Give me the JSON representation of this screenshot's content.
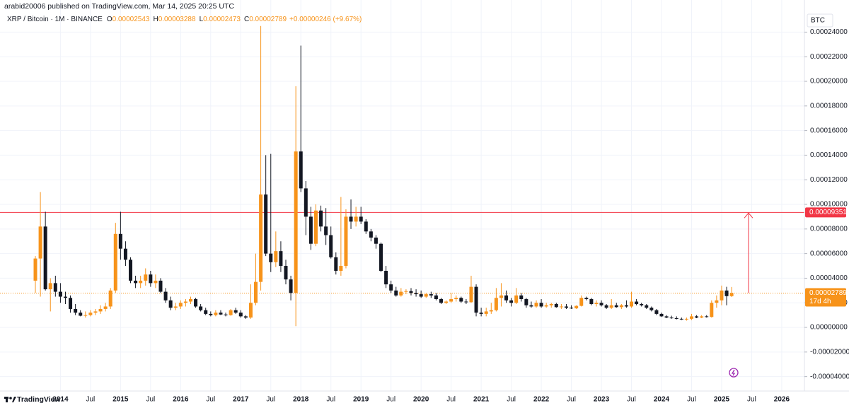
{
  "header": {
    "published": "arabid20006 published on TradingView.com, Mar 14, 2025 20:25 UTC"
  },
  "chart_data": {
    "type": "candlestick",
    "symbol": "XRP / Bitcoin · 1M · BINANCE",
    "ohlc_legend": [
      {
        "key": "O",
        "value": "0.00002543"
      },
      {
        "key": "H",
        "value": "0.00003288"
      },
      {
        "key": "L",
        "value": "0.00002473"
      },
      {
        "key": "C",
        "value": "0.00002789"
      }
    ],
    "change": "+0.00000246 (+9.67%)",
    "currency": "BTC",
    "x": [
      "2013-08",
      "2013-09",
      "2013-10",
      "2013-11",
      "2013-12",
      "2014-01",
      "2014-02",
      "2014-03",
      "2014-04",
      "2014-05",
      "2014-06",
      "2014-07",
      "2014-08",
      "2014-09",
      "2014-10",
      "2014-11",
      "2014-12",
      "2015-01",
      "2015-02",
      "2015-03",
      "2015-04",
      "2015-05",
      "2015-06",
      "2015-07",
      "2015-08",
      "2015-09",
      "2015-10",
      "2015-11",
      "2015-12",
      "2016-01",
      "2016-02",
      "2016-03",
      "2016-04",
      "2016-05",
      "2016-06",
      "2016-07",
      "2016-08",
      "2016-09",
      "2016-10",
      "2016-11",
      "2016-12",
      "2017-01",
      "2017-02",
      "2017-03",
      "2017-04",
      "2017-05",
      "2017-06",
      "2017-07",
      "2017-08",
      "2017-09",
      "2017-10",
      "2017-11",
      "2017-12",
      "2018-01",
      "2018-02",
      "2018-03",
      "2018-04",
      "2018-05",
      "2018-06",
      "2018-07",
      "2018-08",
      "2018-09",
      "2018-10",
      "2018-11",
      "2018-12",
      "2019-01",
      "2019-02",
      "2019-03",
      "2019-04",
      "2019-05",
      "2019-06",
      "2019-07",
      "2019-08",
      "2019-09",
      "2019-10",
      "2019-11",
      "2019-12",
      "2020-01",
      "2020-02",
      "2020-03",
      "2020-04",
      "2020-05",
      "2020-06",
      "2020-07",
      "2020-08",
      "2020-09",
      "2020-10",
      "2020-11",
      "2020-12",
      "2021-01",
      "2021-02",
      "2021-03",
      "2021-04",
      "2021-05",
      "2021-06",
      "2021-07",
      "2021-08",
      "2021-09",
      "2021-10",
      "2021-11",
      "2021-12",
      "2022-01",
      "2022-02",
      "2022-03",
      "2022-04",
      "2022-05",
      "2022-06",
      "2022-07",
      "2022-08",
      "2022-09",
      "2022-10",
      "2022-11",
      "2022-12",
      "2023-01",
      "2023-02",
      "2023-03",
      "2023-04",
      "2023-05",
      "2023-06",
      "2023-07",
      "2023-08",
      "2023-09",
      "2023-10",
      "2023-11",
      "2023-12",
      "2024-01",
      "2024-02",
      "2024-03",
      "2024-04",
      "2024-05",
      "2024-06",
      "2024-07",
      "2024-08",
      "2024-09",
      "2024-10",
      "2024-11",
      "2024-12",
      "2025-01",
      "2025-02",
      "2025-03"
    ],
    "open": [
      3.8e-05,
      5.6e-05,
      8.2e-05,
      3.1e-05,
      3.6e-05,
      2.9e-05,
      2.5e-05,
      2.4e-05,
      1.5e-05,
      1.2e-05,
      9.5e-06,
      1e-05,
      1.2e-05,
      1.3e-05,
      1.5e-05,
      1.7e-05,
      3e-05,
      7.6e-05,
      6.4e-05,
      5.5e-05,
      3.8e-05,
      3.6e-05,
      3.8e-05,
      4.3e-05,
      3.6e-05,
      3.8e-05,
      2.9e-05,
      2.2e-05,
      1.6e-05,
      1.7e-05,
      2e-05,
      2.1e-05,
      2.3e-05,
      1.7e-05,
      1.4e-05,
      1.1e-05,
      1e-05,
      1.2e-05,
      1.05e-05,
      1e-05,
      1.4e-05,
      1.2e-05,
      9e-06,
      8e-06,
      2e-05,
      3.7e-05,
      0.000108,
      6e-05,
      5.3e-05,
      6.2e-05,
      5e-05,
      3.9e-05,
      2.8e-05,
      0.000143,
      0.000113,
      9e-05,
      6.8e-05,
      9.5e-05,
      8.2e-05,
      7.5e-05,
      5.7e-05,
      4.6e-05,
      5e-05,
      9e-05,
      8.6e-05,
      9e-05,
      8.6e-05,
      7.8e-05,
      7.3e-05,
      6.8e-05,
      4.6e-05,
      3.5e-05,
      3e-05,
      2.6e-05,
      2.9e-05,
      2.95e-05,
      2.8e-05,
      2.7e-05,
      2.5e-05,
      2.7e-05,
      2.6e-05,
      2.3e-05,
      2e-05,
      2.1e-05,
      2.3e-05,
      2.4e-05,
      2.1e-05,
      2.05e-05,
      3.3e-05,
      1.2e-05,
      1.1e-05,
      1.3e-05,
      1.4e-05,
      2.4e-05,
      2.6e-05,
      2.2e-05,
      2e-05,
      2.6e-05,
      2.3e-05,
      1.8e-05,
      1.7e-05,
      2e-05,
      1.7e-05,
      1.8e-05,
      1.9e-05,
      1.65e-05,
      1.7e-05,
      1.6e-05,
      1.55e-05,
      1.75e-05,
      2.4e-05,
      2.3e-05,
      1.9e-05,
      2e-05,
      1.8e-05,
      1.6e-05,
      1.8e-05,
      1.65e-05,
      1.8e-05,
      1.7e-05,
      2.1e-05,
      1.9e-05,
      1.8e-05,
      1.6e-05,
      1.4e-05,
      1.1e-05,
      9e-06,
      8e-06,
      7.5e-06,
      7e-06,
      6.5e-06,
      7e-06,
      9e-06,
      8e-06,
      9e-06,
      8.5e-06,
      2e-05,
      2.2e-05,
      3e-05,
      2.543e-05
    ],
    "high": [
      5.8e-05,
      0.00011,
      9.4e-05,
      4e-05,
      4.2e-05,
      3.6e-05,
      2.9e-05,
      2.6e-05,
      1.9e-05,
      1.4e-05,
      1.3e-05,
      1.4e-05,
      1.5e-05,
      1.8e-05,
      2e-05,
      3.2e-05,
      8.5e-05,
      9.4e-05,
      7e-05,
      5.7e-05,
      4.2e-05,
      4.2e-05,
      4.8e-05,
      4.6e-05,
      4.3e-05,
      4e-05,
      3.2e-05,
      2.5e-05,
      2e-05,
      2.2e-05,
      2.3e-05,
      2.5e-05,
      2.4e-05,
      1.9e-05,
      1.6e-05,
      1.3e-05,
      1.4e-05,
      1.4e-05,
      1.2e-05,
      1.5e-05,
      1.6e-05,
      1.4e-05,
      1e-05,
      3.5e-05,
      6e-05,
      0.000245,
      0.00014,
      0.000141,
      7.8e-05,
      7e-05,
      5.5e-05,
      4.2e-05,
      0.000196,
      0.000229,
      0.000119,
      9.8e-05,
      0.0001,
      9.9e-05,
      9.7e-05,
      8.2e-05,
      6.1e-05,
      0.000106,
      9.6e-05,
      0.000104,
      9.8e-05,
      9.8e-05,
      8.8e-05,
      8e-05,
      7.5e-05,
      6.9e-05,
      5e-05,
      3.8e-05,
      3.3e-05,
      3.2e-05,
      3.1e-05,
      3.2e-05,
      3.1e-05,
      3e-05,
      2.8e-05,
      2.9e-05,
      2.8e-05,
      2.4e-05,
      2.2e-05,
      2.8e-05,
      2.6e-05,
      2.5e-05,
      2.3e-05,
      4.2e-05,
      3.5e-05,
      1.6e-05,
      1.6e-05,
      2e-05,
      3.2e-05,
      3.6e-05,
      3e-05,
      2.4e-05,
      3.2e-05,
      2.8e-05,
      2.4e-05,
      2.1e-05,
      2.2e-05,
      2.3e-05,
      2e-05,
      2e-05,
      2e-05,
      1.9e-05,
      1.9e-05,
      1.8e-05,
      1.8e-05,
      2.6e-05,
      2.5e-05,
      2.4e-05,
      2.2e-05,
      2.2e-05,
      1.9e-05,
      2.3e-05,
      2e-05,
      1.9e-05,
      2.2e-05,
      2.9e-05,
      2.3e-05,
      2e-05,
      1.9e-05,
      1.7e-05,
      1.5e-05,
      1.2e-05,
      1e-05,
      9.5e-06,
      9e-06,
      8e-06,
      8e-06,
      1.1e-05,
      1e-05,
      1e-05,
      1e-05,
      2.2e-05,
      2.6e-05,
      3.4e-05,
      3.3e-05,
      3.288e-05
    ],
    "low": [
      2.8e-05,
      2.5e-05,
      3e-05,
      1.3e-05,
      2.5e-05,
      2e-05,
      1.9e-05,
      1.2e-05,
      1e-05,
      9e-06,
      8e-06,
      9e-06,
      1e-05,
      1.1e-05,
      1.3e-05,
      1.5e-05,
      2.8e-05,
      5.5e-05,
      5e-05,
      3.6e-05,
      3.2e-05,
      3.2e-05,
      3.4e-05,
      3.3e-05,
      3.2e-05,
      2.8e-05,
      2e-05,
      1.4e-05,
      1.4e-05,
      1.5e-05,
      1.7e-05,
      1.9e-05,
      1.6e-05,
      1.3e-05,
      1e-05,
      9e-06,
      9e-06,
      1e-05,
      9e-06,
      9.5e-06,
      1.1e-05,
      8e-06,
      7e-06,
      7e-06,
      1.8e-05,
      3e-05,
      5.8e-05,
      4.5e-05,
      4.9e-05,
      4.5e-05,
      3.5e-05,
      2.2e-05,
      1e-06,
      0.00011,
      7.5e-05,
      6.3e-05,
      6.6e-05,
      7.8e-05,
      6.7e-05,
      5.6e-05,
      4.3e-05,
      4.2e-05,
      4.8e-05,
      8e-05,
      8.2e-05,
      8.4e-05,
      7.6e-05,
      7e-05,
      6.4e-05,
      4.5e-05,
      3.2e-05,
      2.8e-05,
      2.5e-05,
      2.5e-05,
      2.7e-05,
      2.6e-05,
      2.5e-05,
      2.4e-05,
      2.4e-05,
      2.4e-05,
      2.2e-05,
      1.9e-05,
      1.9e-05,
      2e-05,
      2.1e-05,
      2e-05,
      1.9e-05,
      2e-05,
      9e-06,
      9e-06,
      9e-06,
      1.1e-05,
      1.3e-05,
      1.7e-05,
      2e-05,
      1.7e-05,
      1.9e-05,
      2.1e-05,
      1.6e-05,
      1.6e-05,
      1.6e-05,
      1.6e-05,
      1.6e-05,
      1.6e-05,
      1.6e-05,
      1.5e-05,
      1.5e-05,
      1.5e-05,
      1.5e-05,
      1.7e-05,
      2.2e-05,
      1.8e-05,
      1.7e-05,
      1.7e-05,
      1.5e-05,
      1.5e-05,
      1.6e-05,
      1.5e-05,
      1.6e-05,
      1.6e-05,
      1.8e-05,
      1.7e-05,
      1.5e-05,
      1.3e-05,
      1e-05,
      8.5e-06,
      7.5e-06,
      7e-06,
      6.5e-06,
      6e-06,
      5.5e-06,
      6e-06,
      7.5e-06,
      7.5e-06,
      8e-06,
      8e-06,
      1.6e-05,
      1.8e-05,
      1.8e-05,
      2.473e-05
    ],
    "close": [
      5.6e-05,
      8.2e-05,
      3.1e-05,
      3.6e-05,
      2.9e-05,
      2.5e-05,
      2.4e-05,
      1.5e-05,
      1.2e-05,
      9.5e-06,
      1e-05,
      1.2e-05,
      1.3e-05,
      1.5e-05,
      1.7e-05,
      3e-05,
      7.6e-05,
      6.4e-05,
      5.5e-05,
      3.8e-05,
      3.6e-05,
      3.8e-05,
      4.3e-05,
      3.6e-05,
      3.8e-05,
      2.9e-05,
      2.2e-05,
      1.6e-05,
      1.7e-05,
      2e-05,
      2.1e-05,
      2.3e-05,
      1.7e-05,
      1.4e-05,
      1.1e-05,
      1e-05,
      1.2e-05,
      1.05e-05,
      1e-05,
      1.4e-05,
      1.2e-05,
      9e-06,
      8e-06,
      2e-05,
      3.7e-05,
      0.000108,
      6e-05,
      5.3e-05,
      6.2e-05,
      5e-05,
      3.9e-05,
      2.8e-05,
      0.000143,
      0.000113,
      9e-05,
      6.8e-05,
      9.5e-05,
      8.2e-05,
      7.5e-05,
      5.7e-05,
      4.6e-05,
      5e-05,
      9e-05,
      8.6e-05,
      9e-05,
      8.6e-05,
      7.8e-05,
      7.3e-05,
      6.8e-05,
      4.6e-05,
      3.5e-05,
      3e-05,
      2.6e-05,
      2.9e-05,
      2.95e-05,
      2.8e-05,
      2.7e-05,
      2.5e-05,
      2.7e-05,
      2.6e-05,
      2.3e-05,
      2e-05,
      2.1e-05,
      2.3e-05,
      2.4e-05,
      2.1e-05,
      2.05e-05,
      3.3e-05,
      1.2e-05,
      1.1e-05,
      1.3e-05,
      1.4e-05,
      2.4e-05,
      2.6e-05,
      2.2e-05,
      2e-05,
      2.6e-05,
      2.3e-05,
      1.8e-05,
      1.7e-05,
      2e-05,
      1.7e-05,
      1.8e-05,
      1.9e-05,
      1.65e-05,
      1.7e-05,
      1.6e-05,
      1.55e-05,
      1.75e-05,
      2.4e-05,
      2.3e-05,
      1.9e-05,
      2e-05,
      1.8e-05,
      1.6e-05,
      1.8e-05,
      1.65e-05,
      1.8e-05,
      1.7e-05,
      2.1e-05,
      1.9e-05,
      1.8e-05,
      1.6e-05,
      1.4e-05,
      1.1e-05,
      9e-06,
      8e-06,
      7.5e-06,
      7e-06,
      6.5e-06,
      7e-06,
      9e-06,
      8e-06,
      9e-06,
      8.5e-06,
      2e-05,
      2.2e-05,
      3e-05,
      2.543e-05,
      2.789e-05
    ],
    "up_color": "#f7931a",
    "down_color": "#131722",
    "ylim": [
      -5.17e-05,
      0.0002661
    ],
    "yticks": [
      {
        "value": -4e-05,
        "label": "-0.00004000"
      },
      {
        "value": -2e-05,
        "label": "-0.00002000"
      },
      {
        "value": 0,
        "label": "0.00000000"
      },
      {
        "value": 2e-05,
        "label": "0.00002000"
      },
      {
        "value": 4e-05,
        "label": "0.00004000"
      },
      {
        "value": 6e-05,
        "label": "0.00006000"
      },
      {
        "value": 8e-05,
        "label": "0.00008000"
      },
      {
        "value": 0.0001,
        "label": "0.00010000"
      },
      {
        "value": 0.00012,
        "label": "0.00012000"
      },
      {
        "value": 0.00014,
        "label": "0.00014000"
      },
      {
        "value": 0.00016,
        "label": "0.00016000"
      },
      {
        "value": 0.00018,
        "label": "0.00018000"
      },
      {
        "value": 0.0002,
        "label": "0.00020000"
      },
      {
        "value": 0.00022,
        "label": "0.00022000"
      },
      {
        "value": 0.00024,
        "label": "0.00024000"
      }
    ],
    "xticks": [
      {
        "value": "2014-01",
        "label": "2014"
      },
      {
        "value": "2014-07",
        "label": "Jul"
      },
      {
        "value": "2015-01",
        "label": "2015"
      },
      {
        "value": "2015-07",
        "label": "Jul"
      },
      {
        "value": "2016-01",
        "label": "2016"
      },
      {
        "value": "2016-07",
        "label": "Jul"
      },
      {
        "value": "2017-01",
        "label": "2017"
      },
      {
        "value": "2017-07",
        "label": "Jul"
      },
      {
        "value": "2018-01",
        "label": "2018"
      },
      {
        "value": "2018-07",
        "label": "Jul"
      },
      {
        "value": "2019-01",
        "label": "2019"
      },
      {
        "value": "2019-07",
        "label": "Jul"
      },
      {
        "value": "2020-01",
        "label": "2020"
      },
      {
        "value": "2020-07",
        "label": "Jul"
      },
      {
        "value": "2021-01",
        "label": "2021"
      },
      {
        "value": "2021-07",
        "label": "Jul"
      },
      {
        "value": "2022-01",
        "label": "2022"
      },
      {
        "value": "2022-07",
        "label": "Jul"
      },
      {
        "value": "2023-01",
        "label": "2023"
      },
      {
        "value": "2023-07",
        "label": "Jul"
      },
      {
        "value": "2024-01",
        "label": "2024"
      },
      {
        "value": "2024-07",
        "label": "Jul"
      },
      {
        "value": "2025-01",
        "label": "2025"
      },
      {
        "value": "2025-07",
        "label": "Jul"
      },
      {
        "value": "2026-01",
        "label": "2026"
      }
    ],
    "grid": true,
    "hline": {
      "value": 9.351e-05,
      "label": "0.00009351",
      "color": "#f23645"
    },
    "last_price": {
      "value": 2.789e-05,
      "label": "0.00002789",
      "countdown": "17d 4h",
      "color": "#f7931a"
    }
  },
  "footer": {
    "brand": "TradingView"
  }
}
